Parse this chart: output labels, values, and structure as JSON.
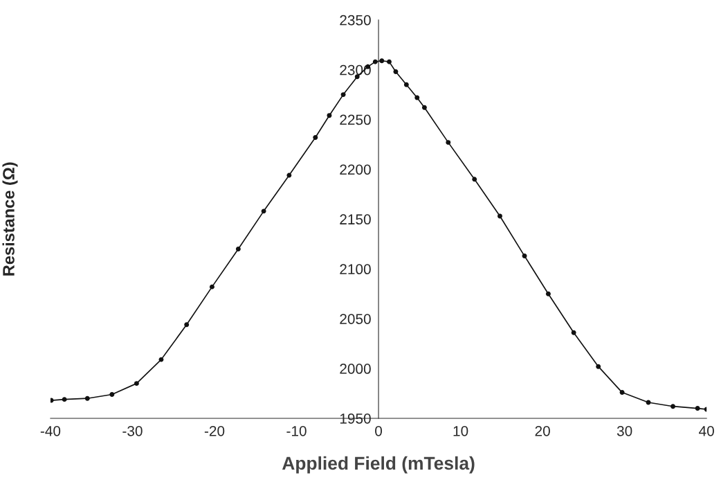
{
  "chart_data": {
    "type": "line",
    "xlabel": "Applied Field (mTesla)",
    "ylabel": "Resistance (Ω)",
    "x": [
      -39.9,
      -38.3,
      -35.5,
      -32.5,
      -29.5,
      -26.5,
      -23.4,
      -20.3,
      -17.1,
      -14.0,
      -10.9,
      -7.7,
      -6.0,
      -4.3,
      -2.6,
      -1.3,
      -0.4,
      0.4,
      1.3,
      2.1,
      3.4,
      4.7,
      5.6,
      8.5,
      11.7,
      14.8,
      17.8,
      20.7,
      23.8,
      26.8,
      29.7,
      32.9,
      35.9,
      38.9,
      40
    ],
    "series": [
      {
        "color": "#111111",
        "values": [
          1968,
          1969,
          1970,
          1974,
          1985,
          2009,
          2044,
          2082,
          2120,
          2158,
          2194,
          2232,
          2254,
          2275,
          2293,
          2303,
          2308,
          2309,
          2308,
          2298,
          2285,
          2272,
          2262,
          2227,
          2190,
          2153,
          2113,
          2075,
          2036,
          2002,
          1976,
          1966,
          1962,
          1960,
          1959
        ]
      }
    ],
    "xlim": [
      -40,
      40
    ],
    "ylim": [
      1950,
      2350
    ],
    "xticks": [
      -40,
      -30,
      -20,
      -10,
      0,
      10,
      20,
      30,
      40
    ],
    "yticks": [
      1950,
      2000,
      2050,
      2100,
      2150,
      2200,
      2250,
      2300,
      2350
    ],
    "marker": "circle",
    "line_style": "solid",
    "grid": false,
    "legend": false
  }
}
